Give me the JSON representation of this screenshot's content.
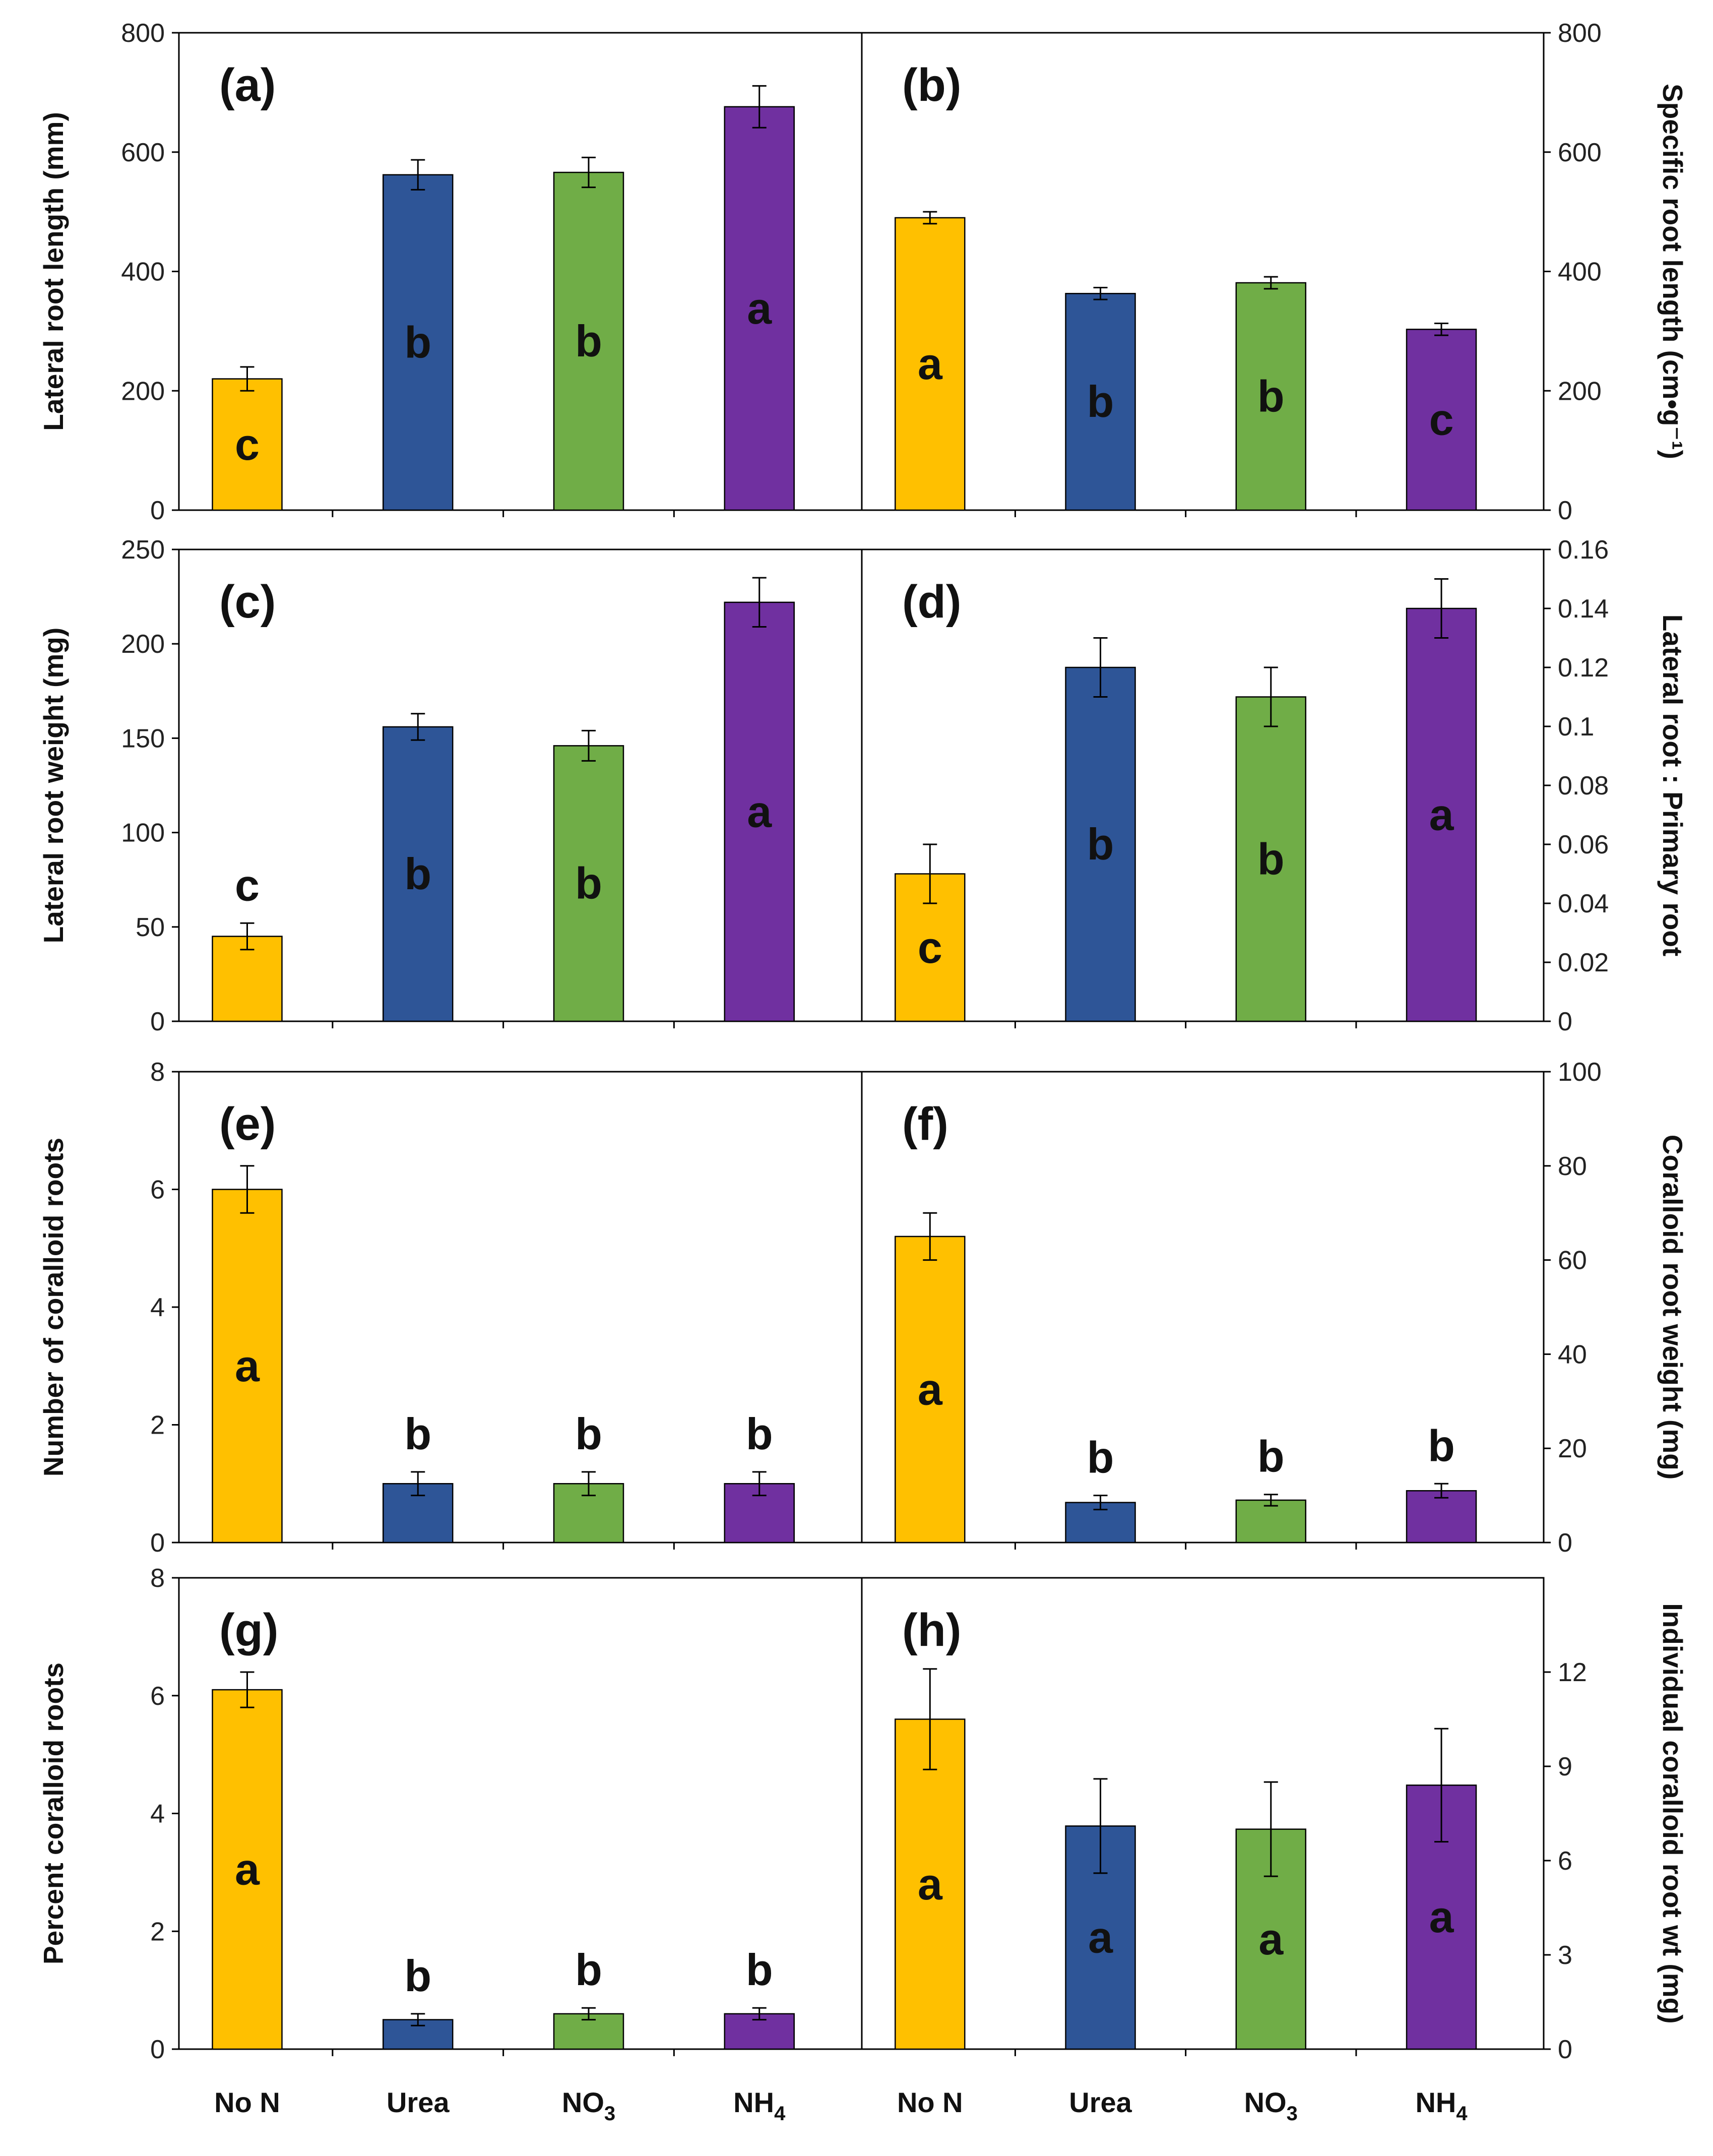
{
  "colors": {
    "No N": "#FFC000",
    "Urea": "#2E5597",
    "NO3": "#70AD47",
    "NH4": "#7030A0",
    "axis": "#000000",
    "text": "#111111"
  },
  "x_categories": [
    {
      "base": "No N",
      "sub": ""
    },
    {
      "base": "Urea",
      "sub": ""
    },
    {
      "base": "NO",
      "sub": "3"
    },
    {
      "base": "NH",
      "sub": "4"
    }
  ],
  "chart_data": [
    {
      "panel": "(a)",
      "type": "bar",
      "axis_side": "left",
      "ylabel": "Lateral root length (mm)",
      "categories": [
        "No N",
        "Urea",
        "NO3",
        "NH4"
      ],
      "values": [
        220,
        562,
        566,
        676
      ],
      "errors": [
        20,
        25,
        25,
        35
      ],
      "letters": [
        "c",
        "b",
        "b",
        "a"
      ],
      "ylim": [
        0,
        800
      ],
      "yticks": [
        "0",
        "200",
        "400",
        "600",
        "800"
      ]
    },
    {
      "panel": "(b)",
      "type": "bar",
      "axis_side": "right",
      "ylabel": "Specific root length (cm•g⁻¹)",
      "categories": [
        "No N",
        "Urea",
        "NO3",
        "NH4"
      ],
      "values": [
        490,
        363,
        381,
        303
      ],
      "errors": [
        10,
        10,
        10,
        10
      ],
      "letters": [
        "a",
        "b",
        "b",
        "c"
      ],
      "ylim": [
        0,
        800
      ],
      "yticks": [
        "0",
        "200",
        "400",
        "600",
        "800"
      ]
    },
    {
      "panel": "(c)",
      "type": "bar",
      "axis_side": "left",
      "ylabel": "Lateral root weight (mg)",
      "categories": [
        "No N",
        "Urea",
        "NO3",
        "NH4"
      ],
      "values": [
        45,
        156,
        146,
        222
      ],
      "errors": [
        7,
        7,
        8,
        13
      ],
      "letters": [
        "c",
        "b",
        "b",
        "a"
      ],
      "ylim": [
        0,
        250
      ],
      "yticks": [
        "0",
        "50",
        "100",
        "150",
        "200",
        "250"
      ]
    },
    {
      "panel": "(d)",
      "type": "bar",
      "axis_side": "right",
      "ylabel": "Lateral root : Primary root",
      "categories": [
        "No N",
        "Urea",
        "NO3",
        "NH4"
      ],
      "values": [
        0.05,
        0.12,
        0.11,
        0.14
      ],
      "errors": [
        0.01,
        0.01,
        0.01,
        0.01
      ],
      "letters": [
        "c",
        "b",
        "b",
        "a"
      ],
      "ylim": [
        0,
        0.16
      ],
      "yticks": [
        "0",
        "0.02",
        "0.04",
        "0.06",
        "0.08",
        "0.1",
        "0.12",
        "0.14",
        "0.16"
      ]
    },
    {
      "panel": "(e)",
      "type": "bar",
      "axis_side": "left",
      "ylabel": "Number of coralloid roots",
      "categories": [
        "No N",
        "Urea",
        "NO3",
        "NH4"
      ],
      "values": [
        6,
        1,
        1,
        1
      ],
      "errors": [
        0.4,
        0.2,
        0.2,
        0.2
      ],
      "letters": [
        "a",
        "b",
        "b",
        "b"
      ],
      "ylim": [
        0,
        8
      ],
      "yticks": [
        "0",
        "2",
        "4",
        "6",
        "8"
      ]
    },
    {
      "panel": "(f)",
      "type": "bar",
      "axis_side": "right",
      "ylabel": "Coralloid root weight (mg)",
      "categories": [
        "No N",
        "Urea",
        "NO3",
        "NH4"
      ],
      "values": [
        65,
        8.5,
        9,
        11
      ],
      "errors": [
        5,
        1.5,
        1.2,
        1.5
      ],
      "letters": [
        "a",
        "b",
        "b",
        "b"
      ],
      "ylim": [
        0,
        100
      ],
      "yticks": [
        "0",
        "20",
        "40",
        "60",
        "80",
        "100"
      ]
    },
    {
      "panel": "(g)",
      "type": "bar",
      "axis_side": "left",
      "ylabel": "Percent coralloid roots",
      "categories": [
        "No N",
        "Urea",
        "NO3",
        "NH4"
      ],
      "values": [
        6.1,
        0.5,
        0.6,
        0.6
      ],
      "errors": [
        0.3,
        0.1,
        0.1,
        0.1
      ],
      "letters": [
        "a",
        "b",
        "b",
        "b"
      ],
      "ylim": [
        0,
        8
      ],
      "yticks": [
        "0",
        "2",
        "4",
        "6",
        "8"
      ]
    },
    {
      "panel": "(h)",
      "type": "bar",
      "axis_side": "right",
      "ylabel": "Individual coralloid root wt (mg)",
      "categories": [
        "No N",
        "Urea",
        "NO3",
        "NH4"
      ],
      "values": [
        10.5,
        7.1,
        7.0,
        8.4
      ],
      "errors": [
        1.6,
        1.5,
        1.5,
        1.8
      ],
      "letters": [
        "a",
        "a",
        "a",
        "a"
      ],
      "ylim": [
        0,
        15
      ],
      "yticks": [
        "0",
        "3",
        "6",
        "9",
        "12"
      ]
    }
  ]
}
